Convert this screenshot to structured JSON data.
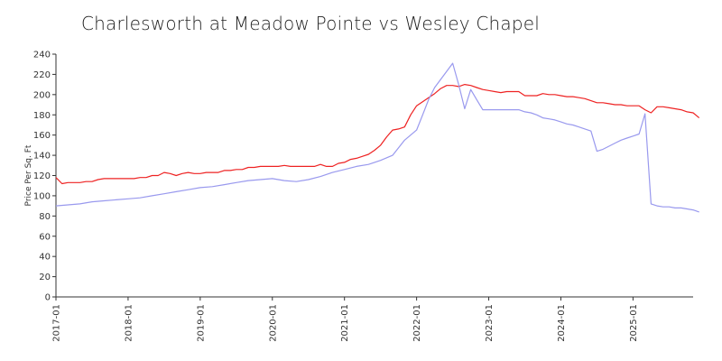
{
  "chart_data": {
    "type": "line",
    "title": "Charlesworth at Meadow Pointe vs Wesley Chapel",
    "xlabel": "",
    "ylabel": "Price Per Sq. Ft",
    "ylim": [
      0,
      240
    ],
    "yticks": [
      "0",
      "20",
      "40",
      "60",
      "80",
      "100",
      "120",
      "140",
      "160",
      "180",
      "200",
      "220",
      "240"
    ],
    "xticks": [
      "2017-01",
      "2018-01",
      "2019-01",
      "2020-01",
      "2021-01",
      "2022-01",
      "2023-01",
      "2024-01",
      "2025-01"
    ],
    "grid": false,
    "legend": "none",
    "x_start": "2017-01",
    "x_end": "2025-11",
    "series": [
      {
        "color": "#ee2222",
        "points": [
          [
            "2017-01",
            118
          ],
          [
            "2017-02",
            112
          ],
          [
            "2017-03",
            113
          ],
          [
            "2017-04",
            113
          ],
          [
            "2017-05",
            113
          ],
          [
            "2017-06",
            114
          ],
          [
            "2017-07",
            114
          ],
          [
            "2017-08",
            116
          ],
          [
            "2017-09",
            117
          ],
          [
            "2017-10",
            117
          ],
          [
            "2017-11",
            117
          ],
          [
            "2017-12",
            117
          ],
          [
            "2018-01",
            117
          ],
          [
            "2018-02",
            117
          ],
          [
            "2018-03",
            118
          ],
          [
            "2018-04",
            118
          ],
          [
            "2018-05",
            120
          ],
          [
            "2018-06",
            120
          ],
          [
            "2018-07",
            123
          ],
          [
            "2018-08",
            122
          ],
          [
            "2018-09",
            120
          ],
          [
            "2018-10",
            122
          ],
          [
            "2018-11",
            123
          ],
          [
            "2018-12",
            122
          ],
          [
            "2019-01",
            122
          ],
          [
            "2019-02",
            123
          ],
          [
            "2019-03",
            123
          ],
          [
            "2019-04",
            123
          ],
          [
            "2019-05",
            125
          ],
          [
            "2019-06",
            125
          ],
          [
            "2019-07",
            126
          ],
          [
            "2019-08",
            126
          ],
          [
            "2019-09",
            128
          ],
          [
            "2019-10",
            128
          ],
          [
            "2019-11",
            129
          ],
          [
            "2019-12",
            129
          ],
          [
            "2020-01",
            129
          ],
          [
            "2020-02",
            129
          ],
          [
            "2020-03",
            130
          ],
          [
            "2020-04",
            129
          ],
          [
            "2020-05",
            129
          ],
          [
            "2020-06",
            129
          ],
          [
            "2020-07",
            129
          ],
          [
            "2020-08",
            129
          ],
          [
            "2020-09",
            131
          ],
          [
            "2020-10",
            129
          ],
          [
            "2020-11",
            129
          ],
          [
            "2020-12",
            132
          ],
          [
            "2021-01",
            133
          ],
          [
            "2021-02",
            136
          ],
          [
            "2021-03",
            137
          ],
          [
            "2021-04",
            139
          ],
          [
            "2021-05",
            141
          ],
          [
            "2021-06",
            145
          ],
          [
            "2021-07",
            150
          ],
          [
            "2021-08",
            158
          ],
          [
            "2021-09",
            165
          ],
          [
            "2021-10",
            166
          ],
          [
            "2021-11",
            168
          ],
          [
            "2021-12",
            180
          ],
          [
            "2022-01",
            189
          ],
          [
            "2022-02",
            193
          ],
          [
            "2022-03",
            197
          ],
          [
            "2022-04",
            201
          ],
          [
            "2022-05",
            206
          ],
          [
            "2022-06",
            209
          ],
          [
            "2022-07",
            209
          ],
          [
            "2022-08",
            208
          ],
          [
            "2022-09",
            210
          ],
          [
            "2022-10",
            209
          ],
          [
            "2022-11",
            207
          ],
          [
            "2022-12",
            205
          ],
          [
            "2023-01",
            204
          ],
          [
            "2023-02",
            203
          ],
          [
            "2023-03",
            202
          ],
          [
            "2023-04",
            203
          ],
          [
            "2023-05",
            203
          ],
          [
            "2023-06",
            203
          ],
          [
            "2023-07",
            199
          ],
          [
            "2023-08",
            199
          ],
          [
            "2023-09",
            199
          ],
          [
            "2023-10",
            201
          ],
          [
            "2023-11",
            200
          ],
          [
            "2023-12",
            200
          ],
          [
            "2024-01",
            199
          ],
          [
            "2024-02",
            198
          ],
          [
            "2024-03",
            198
          ],
          [
            "2024-04",
            197
          ],
          [
            "2024-05",
            196
          ],
          [
            "2024-06",
            194
          ],
          [
            "2024-07",
            192
          ],
          [
            "2024-08",
            192
          ],
          [
            "2024-09",
            191
          ],
          [
            "2024-10",
            190
          ],
          [
            "2024-11",
            190
          ],
          [
            "2024-12",
            189
          ],
          [
            "2025-01",
            189
          ],
          [
            "2025-02",
            189
          ],
          [
            "2025-03",
            185
          ],
          [
            "2025-04",
            182
          ],
          [
            "2025-05",
            188
          ],
          [
            "2025-06",
            188
          ],
          [
            "2025-07",
            187
          ],
          [
            "2025-08",
            186
          ],
          [
            "2025-09",
            185
          ],
          [
            "2025-10",
            183
          ],
          [
            "2025-11",
            182
          ],
          [
            "2025-12",
            177
          ]
        ]
      },
      {
        "color": "#9999ee",
        "points": [
          [
            "2017-01",
            90
          ],
          [
            "2017-03",
            91
          ],
          [
            "2017-05",
            92
          ],
          [
            "2017-07",
            94
          ],
          [
            "2017-09",
            95
          ],
          [
            "2017-11",
            96
          ],
          [
            "2018-01",
            97
          ],
          [
            "2018-03",
            98
          ],
          [
            "2018-05",
            100
          ],
          [
            "2018-07",
            102
          ],
          [
            "2018-09",
            104
          ],
          [
            "2018-11",
            106
          ],
          [
            "2019-01",
            108
          ],
          [
            "2019-03",
            109
          ],
          [
            "2019-05",
            111
          ],
          [
            "2019-07",
            113
          ],
          [
            "2019-09",
            115
          ],
          [
            "2019-11",
            116
          ],
          [
            "2020-01",
            117
          ],
          [
            "2020-03",
            115
          ],
          [
            "2020-05",
            114
          ],
          [
            "2020-07",
            116
          ],
          [
            "2020-09",
            119
          ],
          [
            "2020-11",
            123
          ],
          [
            "2021-01",
            126
          ],
          [
            "2021-03",
            129
          ],
          [
            "2021-05",
            131
          ],
          [
            "2021-07",
            135
          ],
          [
            "2021-09",
            140
          ],
          [
            "2021-11",
            155
          ],
          [
            "2022-01",
            165
          ],
          [
            "2022-02",
            180
          ],
          [
            "2022-03",
            195
          ],
          [
            "2022-04",
            207
          ],
          [
            "2022-05",
            215
          ],
          [
            "2022-06",
            223
          ],
          [
            "2022-07",
            231
          ],
          [
            "2022-08",
            210
          ],
          [
            "2022-09",
            186
          ],
          [
            "2022-10",
            205
          ],
          [
            "2022-11",
            195
          ],
          [
            "2022-12",
            185
          ],
          [
            "2023-01",
            185
          ],
          [
            "2023-02",
            185
          ],
          [
            "2023-03",
            185
          ],
          [
            "2023-04",
            185
          ],
          [
            "2023-05",
            185
          ],
          [
            "2023-06",
            185
          ],
          [
            "2023-07",
            183
          ],
          [
            "2023-08",
            182
          ],
          [
            "2023-09",
            180
          ],
          [
            "2023-10",
            177
          ],
          [
            "2023-11",
            176
          ],
          [
            "2023-12",
            175
          ],
          [
            "2024-01",
            173
          ],
          [
            "2024-02",
            171
          ],
          [
            "2024-03",
            170
          ],
          [
            "2024-04",
            168
          ],
          [
            "2024-05",
            166
          ],
          [
            "2024-06",
            164
          ],
          [
            "2024-07",
            144
          ],
          [
            "2024-08",
            146
          ],
          [
            "2024-09",
            149
          ],
          [
            "2024-10",
            152
          ],
          [
            "2024-11",
            155
          ],
          [
            "2024-12",
            157
          ],
          [
            "2025-01",
            159
          ],
          [
            "2025-02",
            161
          ],
          [
            "2025-03",
            181
          ],
          [
            "2025-04",
            92
          ],
          [
            "2025-05",
            90
          ],
          [
            "2025-06",
            89
          ],
          [
            "2025-07",
            89
          ],
          [
            "2025-08",
            88
          ],
          [
            "2025-09",
            88
          ],
          [
            "2025-10",
            87
          ],
          [
            "2025-11",
            86
          ],
          [
            "2025-12",
            84
          ]
        ]
      }
    ]
  }
}
